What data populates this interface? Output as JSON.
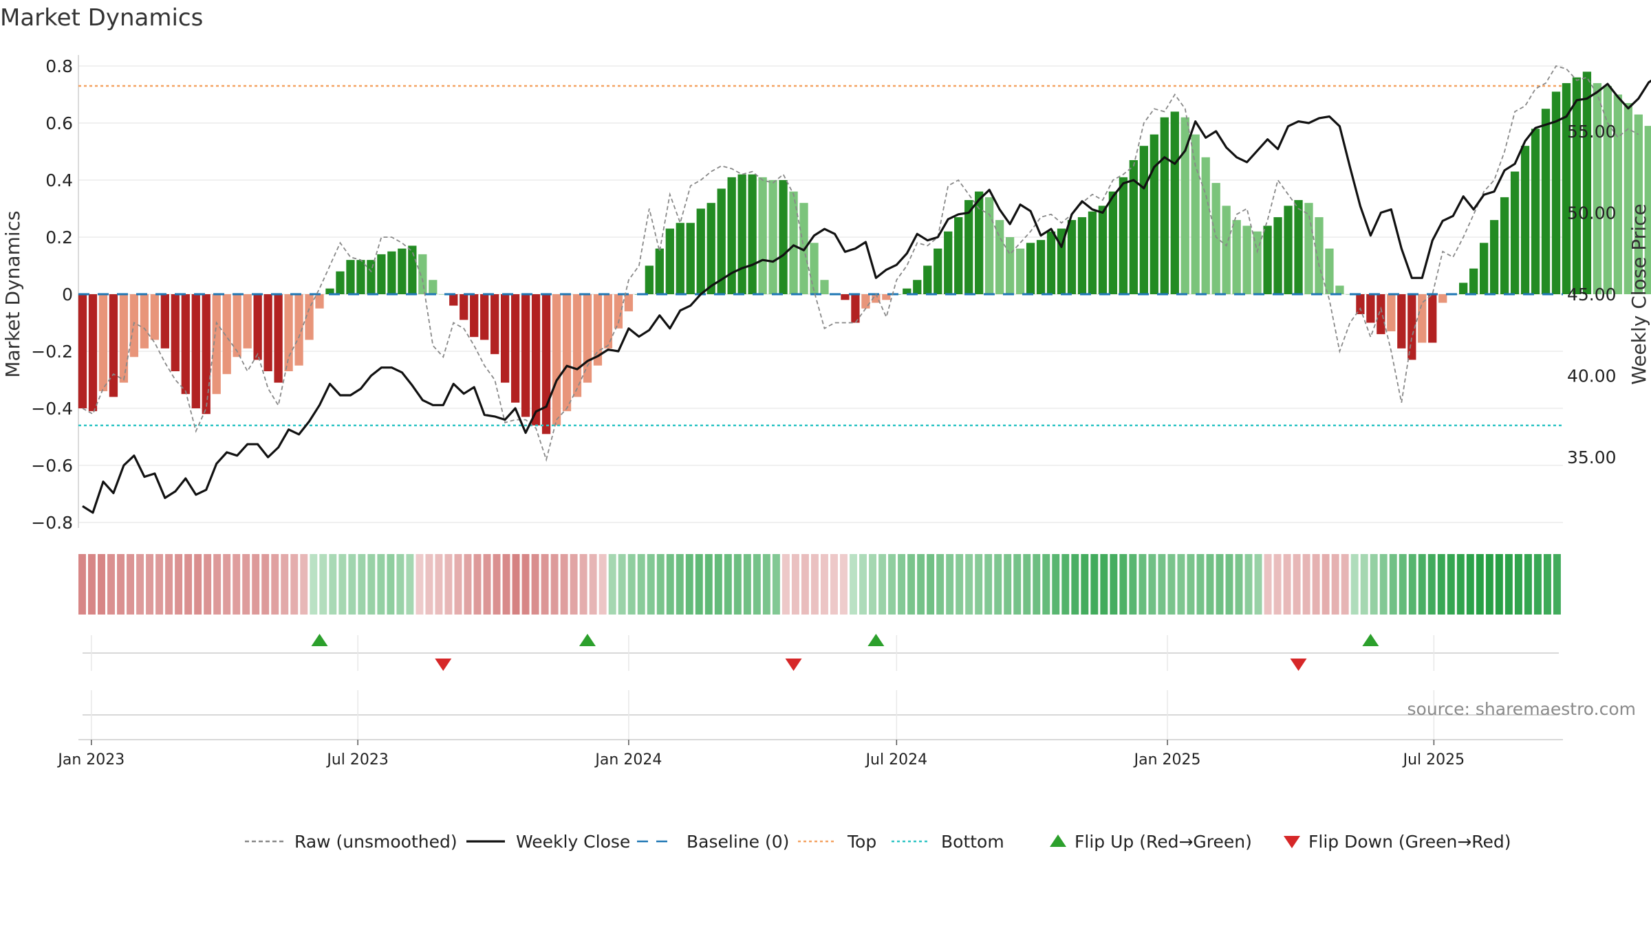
{
  "title": "Market Dynamics",
  "source": "source: sharemaestro.com",
  "chart_data": {
    "type": "bar",
    "title": "Market Dynamics",
    "ylabel_left": "Market Dynamics",
    "ylabel_right": "Weekly Close Price",
    "ylim_left": [
      -0.8,
      0.8
    ],
    "ylim_right": [
      31.0,
      59.0
    ],
    "left_ticks": [
      "0.8",
      "0.6",
      "0.4",
      "0.2",
      "0",
      "−0.2",
      "−0.4",
      "−0.6",
      "−0.8"
    ],
    "right_ticks": [
      "55.00",
      "50.00",
      "45.00",
      "40.00",
      "35.00"
    ],
    "x_ticks": [
      "Jan 2023",
      "Jul 2023",
      "Jan 2024",
      "Jul 2024",
      "Jan 2025",
      "Jul 2025"
    ],
    "x_tick_dates": [
      "2023-01-01",
      "2023-07-01",
      "2024-01-01",
      "2024-07-01",
      "2025-01-01",
      "2025-07-01"
    ],
    "x_first_date": "2022-12-26",
    "x_last_date": "2025-09-22",
    "week_step_days": 7,
    "top_line": 0.73,
    "bottom_line": -0.46,
    "baseline": 0,
    "market_dynamics": [
      -0.4,
      -0.41,
      -0.34,
      -0.36,
      -0.31,
      -0.22,
      -0.19,
      -0.16,
      -0.19,
      -0.27,
      -0.35,
      -0.4,
      -0.42,
      -0.35,
      -0.28,
      -0.22,
      -0.19,
      -0.23,
      -0.27,
      -0.31,
      -0.27,
      -0.25,
      -0.16,
      -0.05,
      0.02,
      0.08,
      0.12,
      0.12,
      0.12,
      0.14,
      0.15,
      0.16,
      0.17,
      0.14,
      0.05,
      0.0,
      -0.04,
      -0.09,
      -0.15,
      -0.16,
      -0.21,
      -0.31,
      -0.38,
      -0.43,
      -0.46,
      -0.49,
      -0.46,
      -0.41,
      -0.36,
      -0.31,
      -0.25,
      -0.19,
      -0.12,
      -0.06,
      0.0,
      0.1,
      0.16,
      0.23,
      0.25,
      0.25,
      0.3,
      0.32,
      0.37,
      0.41,
      0.42,
      0.42,
      0.41,
      0.4,
      0.4,
      0.36,
      0.32,
      0.18,
      0.05,
      0.0,
      -0.02,
      -0.1,
      -0.05,
      -0.03,
      -0.02,
      0.0,
      0.02,
      0.05,
      0.1,
      0.16,
      0.22,
      0.27,
      0.33,
      0.36,
      0.34,
      0.26,
      0.2,
      0.16,
      0.18,
      0.19,
      0.22,
      0.23,
      0.26,
      0.27,
      0.29,
      0.31,
      0.36,
      0.41,
      0.47,
      0.52,
      0.56,
      0.62,
      0.64,
      0.62,
      0.56,
      0.48,
      0.39,
      0.31,
      0.26,
      0.24,
      0.22,
      0.24,
      0.27,
      0.31,
      0.33,
      0.32,
      0.27,
      0.16,
      0.03,
      0.0,
      -0.07,
      -0.1,
      -0.14,
      -0.13,
      -0.19,
      -0.23,
      -0.17,
      -0.17,
      -0.03,
      0.0,
      0.04,
      0.09,
      0.18,
      0.26,
      0.34,
      0.43,
      0.52,
      0.58,
      0.65,
      0.71,
      0.74,
      0.76,
      0.78,
      0.74,
      0.73,
      0.7,
      0.67,
      0.63,
      0.59
    ],
    "raw_unsmoothed": [
      -0.4,
      -0.42,
      -0.33,
      -0.28,
      -0.3,
      -0.1,
      -0.12,
      -0.17,
      -0.24,
      -0.3,
      -0.34,
      -0.48,
      -0.4,
      -0.1,
      -0.15,
      -0.2,
      -0.27,
      -0.21,
      -0.33,
      -0.39,
      -0.22,
      -0.15,
      -0.05,
      0.02,
      0.1,
      0.18,
      0.13,
      0.12,
      0.08,
      0.2,
      0.2,
      0.18,
      0.15,
      0.05,
      -0.18,
      -0.22,
      -0.1,
      -0.12,
      -0.18,
      -0.25,
      -0.3,
      -0.45,
      -0.44,
      -0.44,
      -0.47,
      -0.58,
      -0.44,
      -0.4,
      -0.33,
      -0.25,
      -0.2,
      -0.18,
      -0.1,
      0.05,
      0.1,
      0.3,
      0.15,
      0.35,
      0.25,
      0.38,
      0.4,
      0.43,
      0.45,
      0.44,
      0.42,
      0.43,
      0.4,
      0.39,
      0.42,
      0.35,
      0.16,
      0.01,
      -0.12,
      -0.1,
      -0.1,
      -0.1,
      -0.05,
      0.0,
      -0.08,
      0.05,
      0.1,
      0.18,
      0.17,
      0.2,
      0.38,
      0.4,
      0.35,
      0.3,
      0.28,
      0.2,
      0.14,
      0.18,
      0.22,
      0.27,
      0.28,
      0.25,
      0.28,
      0.32,
      0.35,
      0.33,
      0.4,
      0.42,
      0.45,
      0.6,
      0.65,
      0.64,
      0.7,
      0.65,
      0.45,
      0.35,
      0.2,
      0.17,
      0.28,
      0.3,
      0.15,
      0.26,
      0.4,
      0.35,
      0.3,
      0.28,
      0.1,
      -0.02,
      -0.2,
      -0.1,
      -0.05,
      -0.15,
      -0.05,
      -0.2,
      -0.38,
      -0.15,
      -0.03,
      0.0,
      0.15,
      0.13,
      0.2,
      0.28,
      0.36,
      0.4,
      0.5,
      0.64,
      0.66,
      0.72,
      0.74,
      0.8,
      0.79,
      0.75,
      0.76,
      0.7,
      0.6,
      0.55,
      0.58,
      0.56
    ],
    "weekly_close": [
      32.0,
      31.6,
      33.5,
      32.8,
      34.5,
      35.1,
      33.8,
      34.0,
      32.5,
      32.9,
      33.7,
      32.7,
      33.0,
      34.6,
      35.3,
      35.1,
      35.8,
      35.8,
      35.0,
      35.6,
      36.7,
      36.4,
      37.2,
      38.2,
      39.5,
      38.8,
      38.8,
      39.2,
      40.0,
      40.5,
      40.5,
      40.2,
      39.4,
      38.5,
      38.2,
      38.2,
      39.5,
      38.9,
      39.3,
      37.6,
      37.5,
      37.3,
      38.0,
      36.5,
      37.8,
      38.1,
      39.7,
      40.6,
      40.4,
      40.9,
      41.2,
      41.6,
      41.5,
      42.9,
      42.4,
      42.8,
      43.7,
      42.9,
      44.0,
      44.3,
      45.0,
      45.5,
      45.9,
      46.3,
      46.6,
      46.8,
      47.1,
      47.0,
      47.4,
      48.0,
      47.7,
      48.6,
      49.0,
      48.7,
      47.6,
      47.8,
      48.2,
      46.0,
      46.5,
      46.8,
      47.5,
      48.7,
      48.3,
      48.5,
      49.6,
      49.9,
      50.0,
      50.8,
      51.4,
      50.2,
      49.3,
      50.5,
      50.1,
      48.6,
      49.0,
      47.9,
      49.9,
      50.7,
      50.2,
      50.0,
      51.0,
      51.8,
      52.0,
      51.5,
      52.8,
      53.4,
      53.0,
      53.8,
      55.6,
      54.6,
      55.0,
      54.0,
      53.4,
      53.1,
      53.8,
      54.5,
      53.9,
      55.3,
      55.6,
      55.5,
      55.8,
      55.9,
      55.3,
      52.8,
      50.4,
      48.6,
      50.0,
      50.2,
      47.8,
      46.0,
      46.0,
      48.3,
      49.5,
      49.8,
      51.0,
      50.2,
      51.1,
      51.3,
      52.6,
      53.0,
      54.4,
      55.2,
      55.4,
      55.6,
      55.9,
      56.9,
      57.0,
      57.4,
      57.9,
      57.1,
      56.4,
      57.0,
      58.0,
      58.4
    ],
    "heat_strip": [
      -0.4,
      -0.4,
      -0.4,
      -0.35,
      -0.35,
      -0.33,
      -0.3,
      -0.3,
      -0.3,
      -0.32,
      -0.34,
      -0.35,
      -0.36,
      -0.33,
      -0.3,
      -0.29,
      -0.28,
      -0.29,
      -0.3,
      -0.3,
      -0.26,
      -0.22,
      -0.2,
      -0.15,
      0.1,
      0.14,
      0.18,
      0.2,
      0.22,
      0.24,
      0.26,
      0.28,
      0.3,
      0.25,
      0.2,
      -0.05,
      -0.1,
      -0.12,
      -0.15,
      -0.2,
      -0.25,
      -0.3,
      -0.32,
      -0.35,
      -0.38,
      -0.42,
      -0.4,
      -0.36,
      -0.32,
      -0.3,
      -0.27,
      -0.24,
      -0.2,
      -0.16,
      -0.08,
      0.2,
      0.25,
      0.3,
      0.33,
      0.36,
      0.4,
      0.44,
      0.46,
      0.5,
      0.52,
      0.52,
      0.5,
      0.48,
      0.46,
      0.44,
      0.42,
      0.4,
      0.36,
      -0.06,
      -0.1,
      -0.12,
      -0.1,
      -0.08,
      -0.06,
      -0.04,
      0.1,
      0.16,
      0.2,
      0.25,
      0.3,
      0.35,
      0.4,
      0.42,
      0.44,
      0.4,
      0.36,
      0.34,
      0.32,
      0.34,
      0.36,
      0.38,
      0.4,
      0.42,
      0.44,
      0.46,
      0.5,
      0.55,
      0.58,
      0.62,
      0.65,
      0.66,
      0.66,
      0.64,
      0.6,
      0.55,
      0.48,
      0.44,
      0.42,
      0.4,
      0.38,
      0.4,
      0.42,
      0.44,
      0.45,
      0.44,
      0.4,
      0.32,
      0.26,
      -0.1,
      -0.12,
      -0.14,
      -0.15,
      -0.16,
      -0.18,
      -0.2,
      -0.18,
      -0.16,
      0.15,
      0.2,
      0.28,
      0.36,
      0.44,
      0.5,
      0.56,
      0.62,
      0.66,
      0.7,
      0.72,
      0.74,
      0.76,
      0.78,
      0.8,
      0.78,
      0.76,
      0.74,
      0.72,
      0.7,
      0.68,
      0.66
    ],
    "flip_up": [
      "2023-06-05",
      "2023-12-04",
      "2024-06-17",
      "2025-05-19"
    ],
    "flip_down": [
      "2023-08-28",
      "2024-04-22",
      "2025-03-31"
    ],
    "legend": [
      {
        "label": "Raw (unsmoothed)",
        "kind": "dash-line",
        "color": "#888888"
      },
      {
        "label": "Weekly Close",
        "kind": "line",
        "color": "#111111"
      },
      {
        "label": "Baseline (0)",
        "kind": "long-dash",
        "color": "#1f77b4"
      },
      {
        "label": "Top",
        "kind": "dot-line",
        "color": "#f4a261"
      },
      {
        "label": "Bottom",
        "kind": "dot-line",
        "color": "#2ec4c4"
      },
      {
        "label": "Flip Up (Red→Green)",
        "kind": "triangle-up",
        "color": "#2ca02c"
      },
      {
        "label": "Flip Down (Green→Red)",
        "kind": "triangle-down",
        "color": "#d62728"
      }
    ],
    "colors": {
      "strong_green": "#238b23",
      "light_green": "#7bc47b",
      "strong_red": "#b22222",
      "light_red": "#e8957a",
      "top": "#f4a261",
      "bottom": "#2ec4c4",
      "baseline": "#1f77b4",
      "close": "#111111",
      "raw": "#888888"
    }
  }
}
